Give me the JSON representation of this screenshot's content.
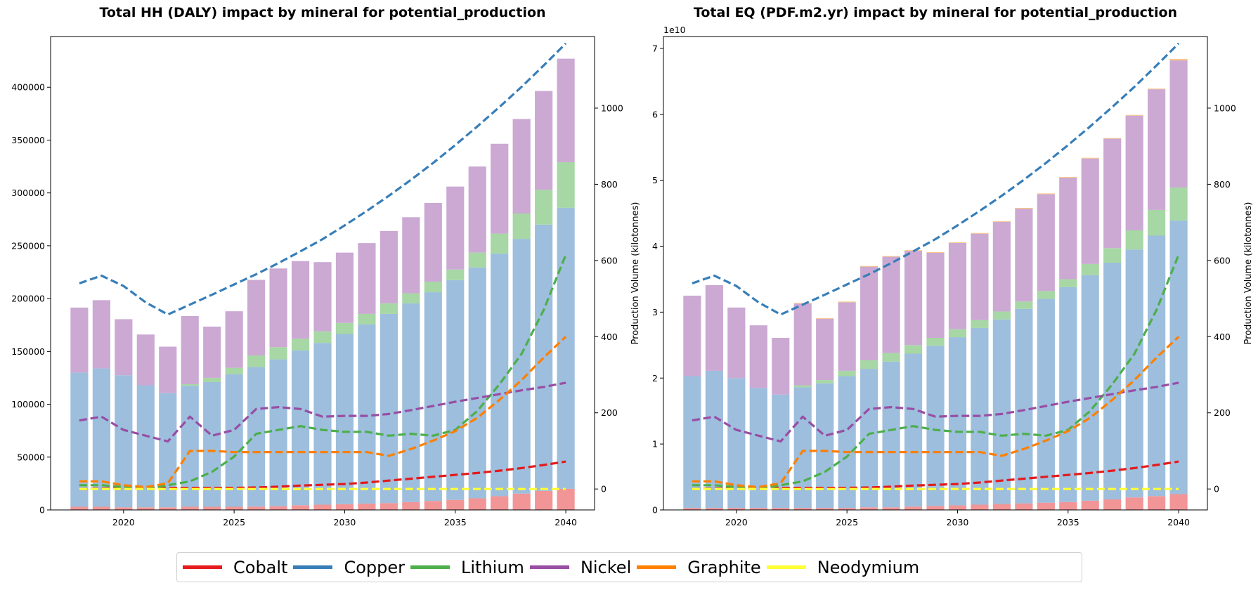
{
  "chart_data": [
    {
      "type": "bar",
      "title": "Total HH (DALY) impact by mineral for potential_production",
      "x": [
        2018,
        2019,
        2020,
        2021,
        2022,
        2023,
        2024,
        2025,
        2026,
        2027,
        2028,
        2029,
        2030,
        2031,
        2032,
        2033,
        2034,
        2035,
        2036,
        2037,
        2038,
        2039,
        2040
      ],
      "xticks": [
        2020,
        2025,
        2030,
        2035,
        2040
      ],
      "ylim": [
        0,
        448000
      ],
      "yticks": [
        0,
        50000,
        100000,
        150000,
        200000,
        250000,
        300000,
        350000,
        400000
      ],
      "ylabel": "",
      "y2label": "Production Volume (kilotonnes)",
      "y2lim": [
        -55,
        1188
      ],
      "y2ticks": [
        0,
        200,
        400,
        600,
        800,
        1000
      ],
      "bar_series": [
        {
          "name": "Cobalt",
          "color": "#f19597",
          "values": [
            3000,
            3000,
            2500,
            2500,
            2500,
            3000,
            3000,
            3000,
            3200,
            3500,
            4500,
            5000,
            5500,
            6000,
            6500,
            7500,
            8500,
            9500,
            11000,
            13000,
            15500,
            18000,
            20000
          ]
        },
        {
          "name": "Copper",
          "color": "#9dbedd",
          "values": [
            127000,
            131000,
            125000,
            115500,
            108000,
            114500,
            118000,
            125500,
            132000,
            139000,
            146500,
            153000,
            161000,
            169500,
            179000,
            188000,
            197500,
            208000,
            218500,
            229500,
            241000,
            252000,
            266000
          ]
        },
        {
          "name": "Lithium",
          "color": "#a6d7a4",
          "values": [
            0,
            0,
            0,
            0,
            0,
            1500,
            4000,
            6000,
            11000,
            11500,
            11000,
            11000,
            10500,
            10000,
            10000,
            9500,
            10000,
            10000,
            14000,
            19000,
            24000,
            33000,
            43000
          ]
        },
        {
          "name": "Nickel",
          "color": "#cba9d3",
          "values": [
            61500,
            64500,
            53000,
            48000,
            44000,
            64500,
            48500,
            53500,
            71500,
            74500,
            73500,
            65500,
            66500,
            67000,
            68500,
            72000,
            74500,
            78500,
            81500,
            85000,
            89500,
            93500,
            98000
          ]
        },
        {
          "name": "Graphite",
          "color": "#fdc37e",
          "values": [
            0,
            0,
            0,
            0,
            0,
            0,
            0,
            0,
            0,
            0,
            0,
            0,
            0,
            0,
            0,
            0,
            0,
            0,
            0,
            0,
            0,
            0,
            0
          ]
        },
        {
          "name": "Neodymium",
          "color": "#ffff99",
          "values": [
            0,
            0,
            0,
            0,
            0,
            0,
            0,
            0,
            0,
            0,
            0,
            0,
            0,
            0,
            0,
            0,
            0,
            0,
            0,
            0,
            0,
            0,
            0
          ]
        }
      ],
      "line_series": [
        {
          "name": "Cobalt",
          "color": "#e41a1c",
          "values": [
            0,
            1,
            2,
            3,
            3,
            3,
            3,
            3,
            4,
            6,
            9,
            11,
            13,
            17,
            22,
            27,
            32,
            37,
            42,
            48,
            55,
            63,
            72
          ]
        },
        {
          "name": "Copper",
          "color": "#377eb8",
          "values": [
            540,
            560,
            533,
            490,
            458,
            484,
            510,
            537,
            564,
            593,
            624,
            656,
            692,
            730,
            770,
            812,
            856,
            903,
            952,
            1003,
            1056,
            1112,
            1170
          ]
        },
        {
          "name": "Lithium",
          "color": "#4daf4a",
          "values": [
            10,
            10,
            5,
            0,
            10,
            20,
            45,
            85,
            145,
            155,
            165,
            155,
            150,
            150,
            140,
            145,
            140,
            155,
            205,
            275,
            355,
            470,
            615
          ]
        },
        {
          "name": "Nickel",
          "color": "#984ea3",
          "values": [
            180,
            190,
            155,
            140,
            125,
            190,
            140,
            155,
            210,
            215,
            210,
            190,
            192,
            192,
            197,
            207,
            218,
            229,
            239,
            249,
            259,
            268,
            279
          ]
        },
        {
          "name": "Graphite",
          "color": "#ff7f00",
          "values": [
            20,
            20,
            10,
            5,
            15,
            100,
            100,
            97,
            97,
            97,
            97,
            97,
            97,
            97,
            87,
            105,
            127,
            152,
            187,
            234,
            286,
            345,
            400
          ]
        },
        {
          "name": "Neodymium",
          "color": "#ffff33",
          "values": [
            0,
            0,
            0,
            0,
            0,
            0,
            0,
            0,
            0,
            0,
            0,
            0,
            0,
            0,
            0,
            0,
            0,
            0,
            0,
            0,
            0,
            0,
            0
          ]
        }
      ]
    },
    {
      "type": "bar",
      "title": "Total EQ (PDF.m2.yr) impact by mineral for potential_production",
      "x": [
        2018,
        2019,
        2020,
        2021,
        2022,
        2023,
        2024,
        2025,
        2026,
        2027,
        2028,
        2029,
        2030,
        2031,
        2032,
        2033,
        2034,
        2035,
        2036,
        2037,
        2038,
        2039,
        2040
      ],
      "xticks": [
        2020,
        2025,
        2030,
        2035,
        2040
      ],
      "ylim": [
        0,
        7.18
      ],
      "yticks": [
        0,
        1,
        2,
        3,
        4,
        5,
        6,
        7
      ],
      "y_exponent_label": "1e10",
      "ylabel": "",
      "y2label": "Production Volume (kilotonnes)",
      "y2lim": [
        -55,
        1188
      ],
      "y2ticks": [
        0,
        200,
        400,
        600,
        800,
        1000
      ],
      "bar_series": [
        {
          "name": "Cobalt",
          "color": "#f19597",
          "values": [
            0.03,
            0.03,
            0.03,
            0.03,
            0.03,
            0.03,
            0.03,
            0.03,
            0.04,
            0.04,
            0.05,
            0.06,
            0.07,
            0.08,
            0.09,
            0.1,
            0.11,
            0.12,
            0.14,
            0.16,
            0.19,
            0.21,
            0.24
          ]
        },
        {
          "name": "Copper",
          "color": "#9dbedd",
          "values": [
            2.0,
            2.08,
            1.97,
            1.82,
            1.72,
            1.83,
            1.89,
            2.0,
            2.1,
            2.21,
            2.32,
            2.43,
            2.55,
            2.68,
            2.8,
            2.95,
            3.09,
            3.26,
            3.42,
            3.59,
            3.76,
            3.95,
            4.15
          ]
        },
        {
          "name": "Lithium",
          "color": "#a6d7a4",
          "values": [
            0,
            0,
            0,
            0,
            0,
            0.03,
            0.05,
            0.08,
            0.13,
            0.13,
            0.13,
            0.12,
            0.12,
            0.12,
            0.12,
            0.11,
            0.12,
            0.12,
            0.17,
            0.22,
            0.29,
            0.39,
            0.5
          ]
        },
        {
          "name": "Nickel",
          "color": "#cba9d3",
          "values": [
            1.22,
            1.3,
            1.07,
            0.95,
            0.86,
            1.24,
            0.93,
            1.04,
            1.42,
            1.46,
            1.43,
            1.29,
            1.31,
            1.31,
            1.36,
            1.41,
            1.47,
            1.54,
            1.6,
            1.66,
            1.74,
            1.83,
            1.93
          ]
        },
        {
          "name": "Graphite",
          "color": "#fdc37e",
          "values": [
            0,
            0,
            0,
            0,
            0,
            0.01,
            0.01,
            0.01,
            0.01,
            0.01,
            0.01,
            0.01,
            0.01,
            0.01,
            0.01,
            0.01,
            0.01,
            0.01,
            0.01,
            0.01,
            0.01,
            0.01,
            0.02
          ]
        },
        {
          "name": "Neodymium",
          "color": "#ffff99",
          "values": [
            0,
            0,
            0,
            0,
            0,
            0,
            0,
            0,
            0,
            0,
            0,
            0,
            0,
            0,
            0,
            0,
            0,
            0,
            0,
            0,
            0,
            0,
            0
          ]
        }
      ],
      "line_series": [
        {
          "name": "Cobalt",
          "color": "#e41a1c",
          "values": [
            0,
            1,
            2,
            3,
            3,
            3,
            3,
            3,
            4,
            6,
            9,
            11,
            13,
            17,
            22,
            27,
            32,
            37,
            42,
            48,
            55,
            63,
            72
          ]
        },
        {
          "name": "Copper",
          "color": "#377eb8",
          "values": [
            540,
            560,
            533,
            490,
            458,
            484,
            510,
            537,
            564,
            593,
            624,
            656,
            692,
            730,
            770,
            812,
            856,
            903,
            952,
            1003,
            1056,
            1112,
            1170
          ]
        },
        {
          "name": "Lithium",
          "color": "#4daf4a",
          "values": [
            10,
            10,
            5,
            0,
            10,
            20,
            45,
            85,
            145,
            155,
            165,
            155,
            150,
            150,
            140,
            145,
            140,
            155,
            205,
            275,
            355,
            470,
            615
          ]
        },
        {
          "name": "Nickel",
          "color": "#984ea3",
          "values": [
            180,
            190,
            155,
            140,
            125,
            190,
            140,
            155,
            210,
            215,
            210,
            190,
            192,
            192,
            197,
            207,
            218,
            229,
            239,
            249,
            259,
            268,
            279
          ]
        },
        {
          "name": "Graphite",
          "color": "#ff7f00",
          "values": [
            20,
            20,
            10,
            5,
            15,
            100,
            100,
            97,
            97,
            97,
            97,
            97,
            97,
            97,
            87,
            105,
            127,
            152,
            187,
            234,
            286,
            345,
            400
          ]
        },
        {
          "name": "Neodymium",
          "color": "#ffff33",
          "values": [
            0,
            0,
            0,
            0,
            0,
            0,
            0,
            0,
            0,
            0,
            0,
            0,
            0,
            0,
            0,
            0,
            0,
            0,
            0,
            0,
            0,
            0,
            0
          ]
        }
      ]
    }
  ],
  "legend": {
    "placement": "bottom-center",
    "items": [
      {
        "label": "Cobalt",
        "color": "#e41a1c"
      },
      {
        "label": "Copper",
        "color": "#377eb8"
      },
      {
        "label": "Lithium",
        "color": "#4daf4a"
      },
      {
        "label": "Nickel",
        "color": "#984ea3"
      },
      {
        "label": "Graphite",
        "color": "#ff7f00"
      },
      {
        "label": "Neodymium",
        "color": "#ffff33"
      }
    ]
  }
}
